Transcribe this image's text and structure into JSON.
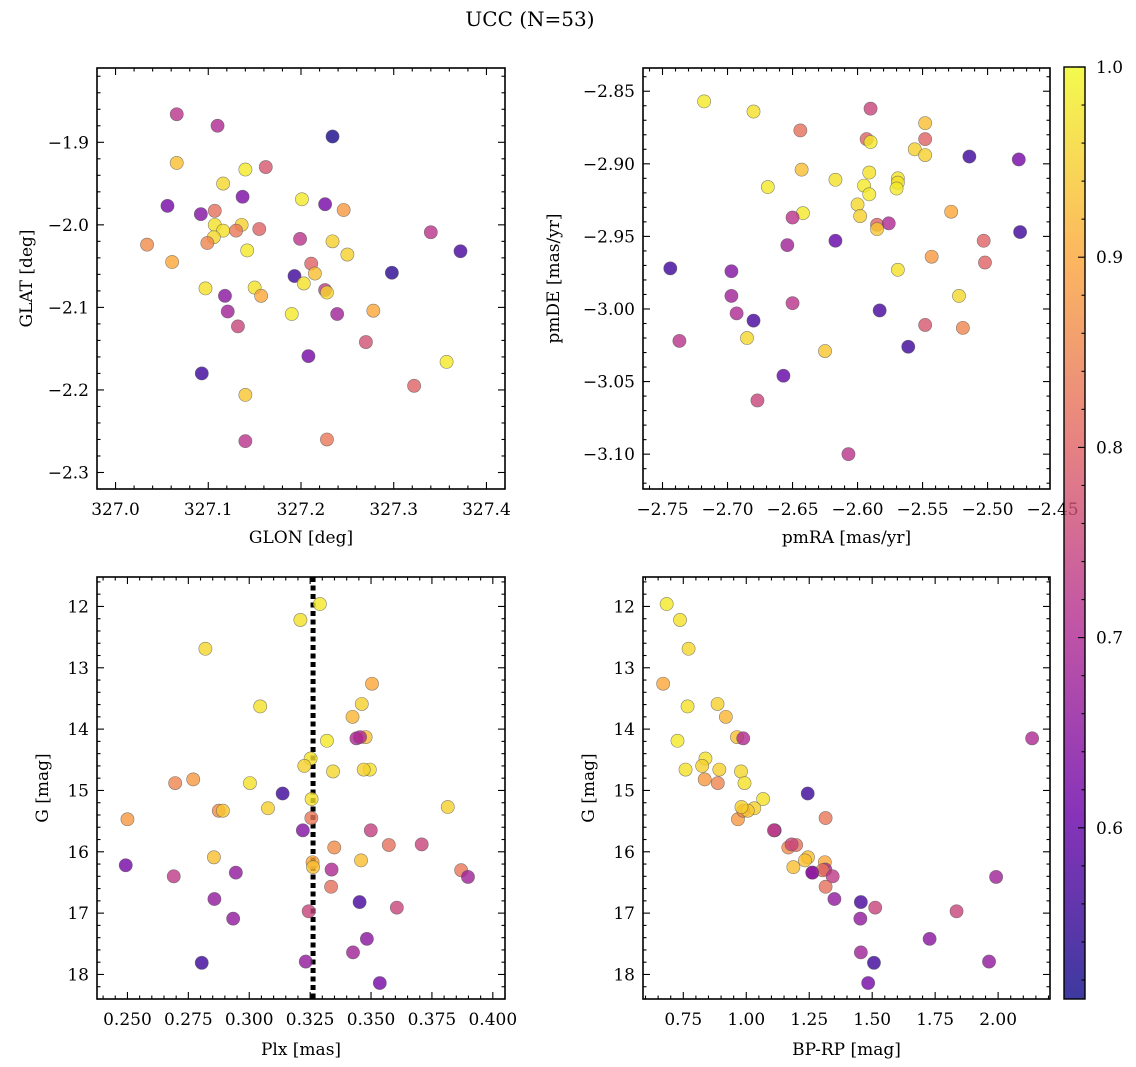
{
  "title": "UCC (N=53)",
  "colormap": {
    "name": "plasma",
    "stops": [
      "#0d0887",
      "#6a00a8",
      "#b12a90",
      "#e16462",
      "#fca636",
      "#f0f921"
    ]
  },
  "colorbar": {
    "min": 0.51,
    "max": 1.0,
    "ticks": [
      0.6,
      0.7,
      0.8,
      0.9,
      1.0
    ],
    "tick_labels": [
      "0.6",
      "0.7",
      "0.8",
      "0.9",
      "1.0"
    ]
  },
  "chart_data": [
    {
      "id": "glon_glat",
      "type": "scatter",
      "xlabel": "GLON [deg]",
      "ylabel": "GLAT [deg]",
      "xlim": [
        326.98,
        327.42
      ],
      "ylim": [
        -2.32,
        -1.81
      ],
      "xticks": [
        327.0,
        327.1,
        327.2,
        327.3,
        327.4
      ],
      "xtick_labels": [
        "327.0",
        "327.1",
        "327.2",
        "327.3",
        "327.4"
      ],
      "yticks": [
        -1.9,
        -2.0,
        -2.1,
        -2.2,
        -2.3
      ],
      "ytick_labels": [
        "−1.9",
        "−2.0",
        "−2.1",
        "−2.2",
        "−2.3"
      ],
      "points": [
        [
          327.066,
          -1.866,
          0.72
        ],
        [
          327.11,
          -1.88,
          0.7
        ],
        [
          327.234,
          -1.893,
          0.52
        ],
        [
          327.066,
          -1.925,
          0.93
        ],
        [
          327.14,
          -1.933,
          0.98
        ],
        [
          327.162,
          -1.93,
          0.78
        ],
        [
          327.116,
          -1.95,
          0.96
        ],
        [
          327.137,
          -1.966,
          0.63
        ],
        [
          327.201,
          -1.969,
          0.98
        ],
        [
          327.226,
          -1.975,
          0.62
        ],
        [
          327.246,
          -1.982,
          0.88
        ],
        [
          327.056,
          -1.977,
          0.62
        ],
        [
          327.092,
          -1.987,
          0.64
        ],
        [
          327.107,
          -1.983,
          0.82
        ],
        [
          327.107,
          -2.0,
          0.97
        ],
        [
          327.136,
          -2.0,
          0.95
        ],
        [
          327.116,
          -2.007,
          0.97
        ],
        [
          327.13,
          -2.007,
          0.83
        ],
        [
          327.155,
          -2.005,
          0.8
        ],
        [
          327.106,
          -2.015,
          0.96
        ],
        [
          327.199,
          -2.017,
          0.72
        ],
        [
          327.234,
          -2.02,
          0.95
        ],
        [
          327.034,
          -2.024,
          0.86
        ],
        [
          327.099,
          -2.022,
          0.85
        ],
        [
          327.142,
          -2.031,
          0.98
        ],
        [
          327.25,
          -2.036,
          0.95
        ],
        [
          327.34,
          -2.009,
          0.72
        ],
        [
          327.372,
          -2.032,
          0.57
        ],
        [
          327.061,
          -2.045,
          0.9
        ],
        [
          327.211,
          -2.047,
          0.8
        ],
        [
          327.193,
          -2.062,
          0.56
        ],
        [
          327.215,
          -2.059,
          0.93
        ],
        [
          327.298,
          -2.058,
          0.54
        ],
        [
          327.203,
          -2.071,
          0.97
        ],
        [
          327.097,
          -2.077,
          0.97
        ],
        [
          327.15,
          -2.076,
          0.97
        ],
        [
          327.226,
          -2.079,
          0.73
        ],
        [
          327.228,
          -2.082,
          0.96
        ],
        [
          327.157,
          -2.086,
          0.9
        ],
        [
          327.118,
          -2.086,
          0.65
        ],
        [
          327.239,
          -2.108,
          0.68
        ],
        [
          327.278,
          -2.104,
          0.9
        ],
        [
          327.19,
          -2.108,
          0.98
        ],
        [
          327.121,
          -2.105,
          0.68
        ],
        [
          327.132,
          -2.123,
          0.75
        ],
        [
          327.27,
          -2.142,
          0.77
        ],
        [
          327.208,
          -2.159,
          0.62
        ],
        [
          327.093,
          -2.18,
          0.56
        ],
        [
          327.357,
          -2.166,
          0.98
        ],
        [
          327.14,
          -2.206,
          0.94
        ],
        [
          327.322,
          -2.195,
          0.8
        ],
        [
          327.14,
          -2.262,
          0.72
        ],
        [
          327.228,
          -2.26,
          0.83
        ]
      ]
    },
    {
      "id": "pm",
      "type": "scatter",
      "xlabel": "pmRA [mas/yr]",
      "ylabel": "pmDE [mas/yr]",
      "xlim": [
        -2.765,
        -2.452
      ],
      "ylim": [
        -3.124,
        -2.834
      ],
      "xticks": [
        -2.75,
        -2.7,
        -2.65,
        -2.6,
        -2.55,
        -2.5,
        -2.45
      ],
      "xtick_labels": [
        "−2.75",
        "−2.70",
        "−2.65",
        "−2.60",
        "−2.55",
        "−2.50",
        "−2.45"
      ],
      "yticks": [
        -2.85,
        -2.9,
        -2.95,
        -3.0,
        -3.05,
        -3.1
      ],
      "ytick_labels": [
        "−2.85",
        "−2.90",
        "−2.95",
        "−3.00",
        "−3.05",
        "−3.10"
      ],
      "points": [
        [
          -2.718,
          -2.857,
          0.98
        ],
        [
          -2.68,
          -2.864,
          0.97
        ],
        [
          -2.644,
          -2.877,
          0.82
        ],
        [
          -2.59,
          -2.862,
          0.75
        ],
        [
          -2.548,
          -2.872,
          0.93
        ],
        [
          -2.593,
          -2.883,
          0.8
        ],
        [
          -2.59,
          -2.885,
          0.98
        ],
        [
          -2.548,
          -2.883,
          0.8
        ],
        [
          -2.556,
          -2.89,
          0.95
        ],
        [
          -2.548,
          -2.894,
          0.95
        ],
        [
          -2.514,
          -2.895,
          0.56
        ],
        [
          -2.476,
          -2.897,
          0.62
        ],
        [
          -2.643,
          -2.904,
          0.93
        ],
        [
          -2.591,
          -2.906,
          0.97
        ],
        [
          -2.617,
          -2.911,
          0.97
        ],
        [
          -2.669,
          -2.916,
          0.98
        ],
        [
          -2.569,
          -2.91,
          0.97
        ],
        [
          -2.569,
          -2.913,
          0.97
        ],
        [
          -2.595,
          -2.915,
          0.98
        ],
        [
          -2.57,
          -2.917,
          0.98
        ],
        [
          -2.591,
          -2.921,
          0.98
        ],
        [
          -2.6,
          -2.928,
          0.96
        ],
        [
          -2.642,
          -2.934,
          0.98
        ],
        [
          -2.65,
          -2.937,
          0.72
        ],
        [
          -2.598,
          -2.936,
          0.95
        ],
        [
          -2.528,
          -2.933,
          0.9
        ],
        [
          -2.585,
          -2.942,
          0.8
        ],
        [
          -2.576,
          -2.941,
          0.7
        ],
        [
          -2.585,
          -2.945,
          0.94
        ],
        [
          -2.475,
          -2.947,
          0.56
        ],
        [
          -2.617,
          -2.953,
          0.6
        ],
        [
          -2.654,
          -2.956,
          0.68
        ],
        [
          -2.503,
          -2.953,
          0.8
        ],
        [
          -2.744,
          -2.972,
          0.56
        ],
        [
          -2.697,
          -2.974,
          0.64
        ],
        [
          -2.569,
          -2.973,
          0.97
        ],
        [
          -2.543,
          -2.964,
          0.88
        ],
        [
          -2.502,
          -2.968,
          0.8
        ],
        [
          -2.697,
          -2.991,
          0.68
        ],
        [
          -2.65,
          -2.996,
          0.72
        ],
        [
          -2.522,
          -2.991,
          0.96
        ],
        [
          -2.693,
          -3.003,
          0.7
        ],
        [
          -2.583,
          -3.001,
          0.57
        ],
        [
          -2.68,
          -3.008,
          0.57
        ],
        [
          -2.548,
          -3.011,
          0.78
        ],
        [
          -2.519,
          -3.013,
          0.85
        ],
        [
          -2.737,
          -3.022,
          0.72
        ],
        [
          -2.685,
          -3.02,
          0.96
        ],
        [
          -2.625,
          -3.029,
          0.94
        ],
        [
          -2.561,
          -3.026,
          0.56
        ],
        [
          -2.657,
          -3.046,
          0.6
        ],
        [
          -2.677,
          -3.063,
          0.75
        ],
        [
          -2.607,
          -3.1,
          0.72
        ]
      ]
    },
    {
      "id": "plx_g",
      "type": "scatter",
      "xlabel": "Plx [mas]",
      "ylabel": "G [mag]",
      "xlim": [
        0.2375,
        0.405
      ],
      "ylim": [
        18.4,
        11.52
      ],
      "xticks": [
        0.25,
        0.275,
        0.3,
        0.325,
        0.35,
        0.375,
        0.4
      ],
      "xtick_labels": [
        "0.250",
        "0.275",
        "0.300",
        "0.325",
        "0.350",
        "0.375",
        "0.400"
      ],
      "yticks": [
        12,
        13,
        14,
        15,
        16,
        17,
        18
      ],
      "ytick_labels": [
        "12",
        "13",
        "14",
        "15",
        "16",
        "17",
        "18"
      ],
      "reference_line": {
        "x": 0.3262,
        "style": "dotted",
        "color": "#000000"
      },
      "points": [
        [
          0.329,
          11.96,
          0.98
        ],
        [
          0.321,
          12.22,
          0.97
        ],
        [
          0.282,
          12.69,
          0.96
        ],
        [
          0.3504,
          13.26,
          0.9
        ],
        [
          0.3045,
          13.63,
          0.97
        ],
        [
          0.3462,
          13.59,
          0.95
        ],
        [
          0.3424,
          13.8,
          0.92
        ],
        [
          0.3478,
          14.13,
          0.93
        ],
        [
          0.344,
          14.15,
          0.7
        ],
        [
          0.3455,
          14.13,
          0.7
        ],
        [
          0.3319,
          14.19,
          0.98
        ],
        [
          0.3252,
          14.48,
          0.97
        ],
        [
          0.3226,
          14.6,
          0.95
        ],
        [
          0.3495,
          14.66,
          0.97
        ],
        [
          0.347,
          14.66,
          0.95
        ],
        [
          0.3344,
          14.69,
          0.96
        ],
        [
          0.277,
          14.82,
          0.88
        ],
        [
          0.2696,
          14.88,
          0.85
        ],
        [
          0.3003,
          14.88,
          0.97
        ],
        [
          0.3137,
          15.05,
          0.56
        ],
        [
          0.3256,
          15.14,
          0.97
        ],
        [
          0.25,
          15.47,
          0.88
        ],
        [
          0.3077,
          15.29,
          0.95
        ],
        [
          0.2875,
          15.33,
          0.86
        ],
        [
          0.2892,
          15.33,
          0.94
        ],
        [
          0.3815,
          15.27,
          0.95
        ],
        [
          0.3255,
          15.45,
          0.83
        ],
        [
          0.322,
          15.65,
          0.64
        ],
        [
          0.3499,
          15.65,
          0.74
        ],
        [
          0.3349,
          15.93,
          0.86
        ],
        [
          0.3573,
          15.89,
          0.82
        ],
        [
          0.3708,
          15.88,
          0.75
        ],
        [
          0.2855,
          16.09,
          0.93
        ],
        [
          0.3459,
          16.14,
          0.93
        ],
        [
          0.326,
          16.17,
          0.9
        ],
        [
          0.3262,
          16.25,
          0.93
        ],
        [
          0.2493,
          16.22,
          0.62
        ],
        [
          0.3338,
          16.29,
          0.7
        ],
        [
          0.387,
          16.3,
          0.83
        ],
        [
          0.269,
          16.4,
          0.73
        ],
        [
          0.3898,
          16.41,
          0.68
        ],
        [
          0.2945,
          16.34,
          0.66
        ],
        [
          0.3336,
          16.57,
          0.82
        ],
        [
          0.2857,
          16.77,
          0.66
        ],
        [
          0.3453,
          16.82,
          0.57
        ],
        [
          0.3606,
          16.91,
          0.75
        ],
        [
          0.3244,
          16.97,
          0.75
        ],
        [
          0.2934,
          17.09,
          0.66
        ],
        [
          0.3483,
          17.42,
          0.65
        ],
        [
          0.3426,
          17.64,
          0.68
        ],
        [
          0.2805,
          17.81,
          0.56
        ],
        [
          0.3232,
          17.79,
          0.66
        ],
        [
          0.3536,
          18.14,
          0.62
        ]
      ]
    },
    {
      "id": "cmd",
      "type": "scatter",
      "xlabel": "BP-RP [mag]",
      "ylabel": "G [mag]",
      "xlim": [
        0.59,
        2.206
      ],
      "ylim": [
        18.4,
        11.52
      ],
      "xticks": [
        0.75,
        1.0,
        1.25,
        1.5,
        1.75,
        2.0
      ],
      "xtick_labels": [
        "0.75",
        "1.00",
        "1.25",
        "1.50",
        "1.75",
        "2.00"
      ],
      "yticks": [
        12,
        13,
        14,
        15,
        16,
        17,
        18
      ],
      "ytick_labels": [
        "12",
        "13",
        "14",
        "15",
        "16",
        "17",
        "18"
      ],
      "points": [
        [
          0.684,
          11.96,
          0.98
        ],
        [
          0.737,
          12.22,
          0.97
        ],
        [
          0.771,
          12.69,
          0.96
        ],
        [
          0.67,
          13.26,
          0.9
        ],
        [
          0.767,
          13.63,
          0.97
        ],
        [
          0.886,
          13.59,
          0.95
        ],
        [
          0.919,
          13.8,
          0.92
        ],
        [
          0.963,
          14.13,
          0.93
        ],
        [
          0.988,
          14.15,
          0.7
        ],
        [
          2.135,
          14.15,
          0.7
        ],
        [
          0.727,
          14.19,
          0.98
        ],
        [
          0.838,
          14.48,
          0.97
        ],
        [
          0.825,
          14.6,
          0.95
        ],
        [
          0.759,
          14.66,
          0.97
        ],
        [
          0.893,
          14.66,
          0.95
        ],
        [
          0.979,
          14.69,
          0.96
        ],
        [
          0.835,
          14.82,
          0.88
        ],
        [
          0.887,
          14.88,
          0.85
        ],
        [
          0.993,
          14.88,
          0.97
        ],
        [
          1.244,
          15.05,
          0.56
        ],
        [
          1.067,
          15.14,
          0.97
        ],
        [
          0.967,
          15.47,
          0.88
        ],
        [
          1.032,
          15.29,
          0.95
        ],
        [
          0.988,
          15.33,
          0.86
        ],
        [
          1.006,
          15.33,
          0.94
        ],
        [
          0.981,
          15.27,
          0.95
        ],
        [
          1.315,
          15.45,
          0.83
        ],
        [
          1.113,
          15.65,
          0.64
        ],
        [
          1.11,
          15.65,
          0.74
        ],
        [
          1.167,
          15.93,
          0.86
        ],
        [
          1.198,
          15.89,
          0.82
        ],
        [
          1.18,
          15.88,
          0.75
        ],
        [
          1.245,
          16.09,
          0.93
        ],
        [
          1.233,
          16.14,
          0.93
        ],
        [
          1.312,
          16.17,
          0.9
        ],
        [
          1.187,
          16.25,
          0.93
        ],
        [
          1.263,
          16.34,
          0.62
        ],
        [
          1.314,
          16.29,
          0.7
        ],
        [
          1.303,
          16.3,
          0.83
        ],
        [
          1.343,
          16.4,
          0.73
        ],
        [
          1.992,
          16.41,
          0.68
        ],
        [
          1.262,
          16.34,
          0.66
        ],
        [
          1.315,
          16.57,
          0.82
        ],
        [
          1.35,
          16.77,
          0.66
        ],
        [
          1.455,
          16.82,
          0.57
        ],
        [
          1.512,
          16.91,
          0.75
        ],
        [
          1.835,
          16.97,
          0.75
        ],
        [
          1.453,
          17.09,
          0.66
        ],
        [
          1.728,
          17.42,
          0.65
        ],
        [
          1.455,
          17.64,
          0.68
        ],
        [
          1.507,
          17.81,
          0.56
        ],
        [
          1.964,
          17.79,
          0.66
        ],
        [
          1.484,
          18.14,
          0.62
        ]
      ]
    }
  ]
}
